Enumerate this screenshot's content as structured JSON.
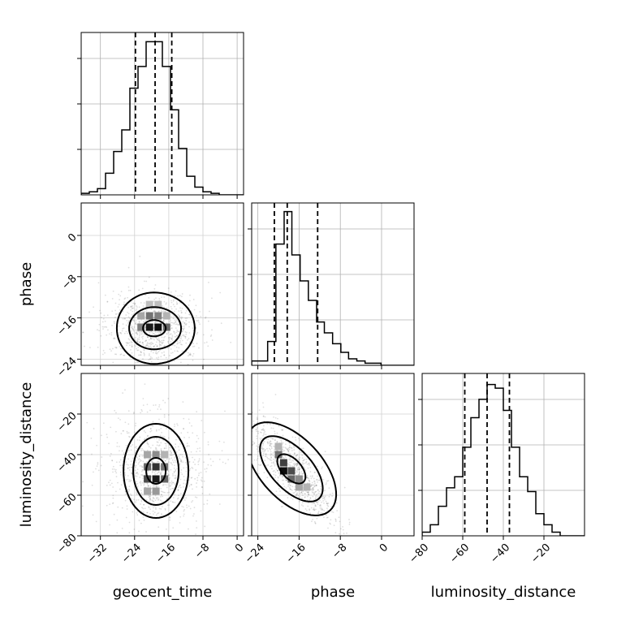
{
  "chart_data": {
    "type": "corner",
    "parameters": [
      "geocent_time",
      "phase",
      "luminosity_distance"
    ],
    "ranges": {
      "geocent_time": [
        -36.5,
        1.5
      ],
      "phase": [
        -25.2,
        6.3
      ],
      "luminosity_distance": [
        -80.0,
        0.0
      ]
    },
    "tick_labels": {
      "geocent_time": [
        "−32",
        "−24",
        "−16",
        "−8",
        "0"
      ],
      "phase": [
        "−24",
        "−16",
        "−8",
        "0"
      ],
      "luminosity_distance": [
        "−80",
        "−60",
        "−40",
        "−20"
      ]
    },
    "tick_values": {
      "geocent_time": [
        -32,
        -24,
        -16,
        -8,
        0
      ],
      "phase": [
        -24,
        -16,
        -8,
        0
      ],
      "luminosity_distance": [
        -80,
        -60,
        -40,
        -20
      ]
    },
    "quantiles": {
      "geocent_time": [
        -23.8,
        -19.2,
        -15.3
      ],
      "phase": [
        -20.8,
        -18.3,
        -12.4
      ],
      "luminosity_distance": [
        -59.0,
        -48.0,
        -37.0
      ]
    },
    "histograms": {
      "geocent_time": {
        "edges": [
          -36.5,
          -34.6,
          -32.7,
          -30.8,
          -28.9,
          -27.0,
          -25.1,
          -23.2,
          -21.3,
          -19.4,
          -17.5,
          -15.6,
          -13.7,
          -11.8,
          -9.9,
          -8.0,
          -6.1,
          -4.2,
          -2.3,
          -0.4,
          1.5
        ],
        "counts": [
          1,
          2,
          4,
          14,
          28,
          42,
          69,
          83,
          99,
          99,
          83,
          55,
          30,
          12,
          5,
          2,
          1,
          0,
          0,
          0
        ],
        "ylim": [
          0,
          105
        ]
      },
      "phase": {
        "edges": [
          -25.2,
          -23.6,
          -22.1,
          -20.5,
          -18.9,
          -17.4,
          -15.8,
          -14.2,
          -12.6,
          -11.1,
          -9.5,
          -7.9,
          -6.4,
          -4.8,
          -3.2,
          -1.6,
          -0.1,
          1.5,
          3.1,
          4.7,
          6.3
        ],
        "counts": [
          2,
          2,
          11,
          56,
          71,
          51,
          39,
          30,
          20,
          15,
          10,
          6,
          3,
          2,
          1,
          1,
          0,
          0,
          0,
          0
        ],
        "ylim": [
          0,
          75
        ]
      },
      "luminosity_distance": {
        "edges": [
          -80,
          -76,
          -72,
          -68,
          -64,
          -60,
          -56,
          -52,
          -48,
          -44,
          -40,
          -36,
          -32,
          -28,
          -24,
          -20,
          -16,
          -12,
          -8,
          -4,
          0
        ],
        "counts": [
          1,
          3,
          8,
          13,
          16,
          24,
          32,
          37,
          41,
          40,
          34,
          24,
          16,
          12,
          6,
          3,
          1,
          0,
          0,
          0
        ],
        "ylim": [
          0,
          44
        ]
      }
    },
    "pairs": [
      {
        "x": "geocent_time",
        "y": "phase",
        "contour_count": 3,
        "center": [
          -19.5,
          -18.0
        ],
        "blocks": [
          [
            -22.5,
            -17.8,
            0.5
          ],
          [
            -20.5,
            -17.8,
            0.9
          ],
          [
            -18.5,
            -17.8,
            0.95
          ],
          [
            -16.5,
            -17.8,
            0.6
          ],
          [
            -22.5,
            -15.6,
            0.35
          ],
          [
            -20.5,
            -15.6,
            0.55
          ],
          [
            -18.5,
            -15.6,
            0.5
          ],
          [
            -16.5,
            -15.6,
            0.3
          ],
          [
            -20.5,
            -13.4,
            0.25
          ],
          [
            -18.5,
            -13.4,
            0.25
          ]
        ]
      },
      {
        "x": "geocent_time",
        "y": "luminosity_distance",
        "contour_count": 3,
        "center": [
          -19.0,
          -48.0
        ],
        "blocks": [
          [
            -21.0,
            -52.0,
            0.7
          ],
          [
            -19.0,
            -52.0,
            0.9
          ],
          [
            -17.0,
            -52.0,
            0.6
          ],
          [
            -21.0,
            -46.0,
            0.6
          ],
          [
            -19.0,
            -46.0,
            0.8
          ],
          [
            -17.0,
            -46.0,
            0.55
          ],
          [
            -21.0,
            -40.0,
            0.35
          ],
          [
            -19.0,
            -40.0,
            0.45
          ],
          [
            -17.0,
            -40.0,
            0.3
          ],
          [
            -21.0,
            -58.0,
            0.35
          ],
          [
            -19.0,
            -58.0,
            0.4
          ]
        ]
      },
      {
        "x": "phase",
        "y": "luminosity_distance",
        "contour_count": 3,
        "center": [
          -17.5,
          -47.0
        ],
        "blocks": [
          [
            -20.0,
            -40.0,
            0.55
          ],
          [
            -19.0,
            -44.0,
            0.75
          ],
          [
            -19.0,
            -48.0,
            0.95
          ],
          [
            -17.5,
            -48.0,
            0.7
          ],
          [
            -17.5,
            -52.0,
            0.6
          ],
          [
            -16.0,
            -52.0,
            0.45
          ],
          [
            -16.0,
            -56.0,
            0.35
          ],
          [
            -14.5,
            -56.0,
            0.3
          ],
          [
            -20.0,
            -36.0,
            0.3
          ]
        ]
      }
    ]
  }
}
